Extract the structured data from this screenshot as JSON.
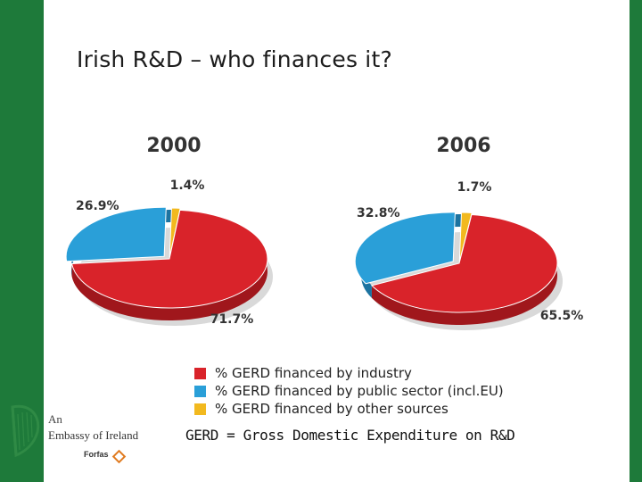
{
  "slide": {
    "title": "Irish R&D – who finances it?",
    "footnote": "GERD = Gross Domestic Expenditure on R&D"
  },
  "logo": {
    "line1": "An",
    "line2": "Embassy of Ireland",
    "agency": "Forfas",
    "icon": "harp-icon"
  },
  "colors": {
    "frame_green": "#1e7a3a",
    "industry": "#d9232a",
    "public": "#2a9fd8",
    "other": "#f2b91f"
  },
  "chart_data": [
    {
      "type": "pie",
      "title": "2000",
      "slices": [
        {
          "name": "% GERD financed by industry",
          "value": 71.7,
          "label": "71.7%"
        },
        {
          "name": "% GERD financed by public sector (incl.EU)",
          "value": 26.9,
          "label": "26.9%"
        },
        {
          "name": "% GERD financed by other sources",
          "value": 1.4,
          "label": "1.4%"
        }
      ]
    },
    {
      "type": "pie",
      "title": "2006",
      "slices": [
        {
          "name": "% GERD financed by industry",
          "value": 65.5,
          "label": "65.5%"
        },
        {
          "name": "% GERD financed by public sector (incl.EU)",
          "value": 32.8,
          "label": "32.8%"
        },
        {
          "name": "% GERD financed by other sources",
          "value": 1.7,
          "label": "1.7%"
        }
      ]
    }
  ],
  "legend": [
    {
      "label": "% GERD financed by industry",
      "color": "#d9232a"
    },
    {
      "label": "% GERD financed by public sector (incl.EU)",
      "color": "#2a9fd8"
    },
    {
      "label": "% GERD financed by other sources",
      "color": "#f2b91f"
    }
  ]
}
